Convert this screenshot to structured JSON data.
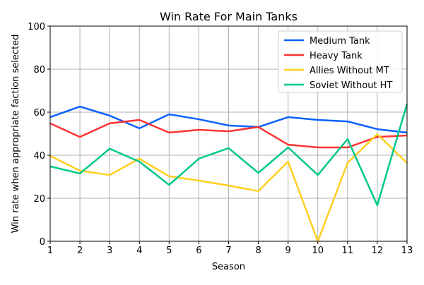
{
  "chart_data": {
    "type": "line",
    "title": "Win Rate For Main Tanks",
    "xlabel": "Season",
    "ylabel": "Win rate when appropriate faction selected",
    "x": [
      1,
      2,
      3,
      4,
      5,
      6,
      7,
      8,
      9,
      10,
      11,
      12,
      13
    ],
    "xlim": [
      1,
      13
    ],
    "ylim": [
      0,
      100
    ],
    "yticks": [
      0,
      20,
      40,
      60,
      80,
      100
    ],
    "grid": true,
    "legend_position": "top-right",
    "series": [
      {
        "name": "Medium Tank",
        "color": "#0b62fe",
        "values": [
          57.7,
          62.6,
          58.4,
          52.5,
          59.0,
          56.7,
          53.8,
          53.1,
          57.7,
          56.4,
          55.7,
          52.1,
          50.5
        ]
      },
      {
        "name": "Heavy Tank",
        "color": "#fe3333",
        "values": [
          54.8,
          48.5,
          54.8,
          56.4,
          50.5,
          51.8,
          51.1,
          53.1,
          44.9,
          43.6,
          43.6,
          48.5,
          49.2
        ]
      },
      {
        "name": "Allies Without MT",
        "color": "#fecf20",
        "values": [
          39.7,
          32.8,
          30.8,
          38.4,
          30.2,
          28.2,
          25.9,
          23.3,
          37.0,
          0.0,
          36.4,
          49.8,
          36.4
        ]
      },
      {
        "name": "Soviet Without HT",
        "color": "#00c88a",
        "values": [
          34.8,
          31.5,
          43.0,
          37.0,
          26.2,
          38.4,
          43.3,
          31.8,
          43.6,
          30.8,
          47.5,
          16.7,
          63.9
        ]
      }
    ]
  }
}
